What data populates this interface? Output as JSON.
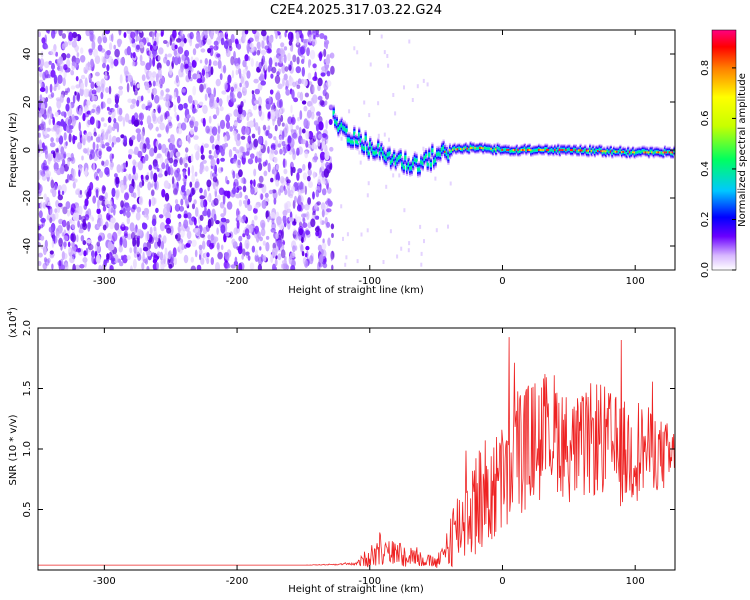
{
  "figure": {
    "title": "C2E4.2025.317.03.22.G24"
  },
  "chart_data": [
    {
      "type": "heatmap",
      "name": "spectrogram",
      "xlabel": "Height of straight line (km)",
      "ylabel": "Frequency (Hz)",
      "xlim": [
        -350,
        130
      ],
      "ylim": [
        -50,
        50
      ],
      "xticks": [
        -300,
        -200,
        -100,
        0,
        100
      ],
      "yticks": [
        -40,
        -20,
        0,
        20,
        40
      ],
      "description_of_data": "noise region for heights below about -130 km; signal trace near 0 Hz for heights above -130 km",
      "noise_region_x": [
        -350,
        -128
      ],
      "trace": [
        {
          "x": -128,
          "freq": 13
        },
        {
          "x": -120,
          "freq": 8
        },
        {
          "x": -110,
          "freq": 4
        },
        {
          "x": -100,
          "freq": 1
        },
        {
          "x": -90,
          "freq": -2
        },
        {
          "x": -80,
          "freq": -4
        },
        {
          "x": -70,
          "freq": -6
        },
        {
          "x": -60,
          "freq": -5
        },
        {
          "x": -50,
          "freq": -2
        },
        {
          "x": -40,
          "freq": 0
        },
        {
          "x": -20,
          "freq": 1
        },
        {
          "x": 0,
          "freq": 0
        },
        {
          "x": 50,
          "freq": 0
        },
        {
          "x": 100,
          "freq": -1
        },
        {
          "x": 130,
          "freq": -1
        }
      ],
      "colorbar": {
        "label": "Normalized spectral amplitude",
        "range": [
          0.0,
          0.95
        ],
        "ticks": [
          "0.0",
          "0.2",
          "0.4",
          "0.6",
          "0.8"
        ],
        "tick_values": [
          0.0,
          0.2,
          0.4,
          0.6,
          0.8
        ],
        "colors": [
          "#ffffff",
          "#6a00ff",
          "#0000ff",
          "#00c8ff",
          "#00ff60",
          "#c8ff00",
          "#ffff00",
          "#ff8000",
          "#ff0000",
          "#ff0080"
        ]
      }
    },
    {
      "type": "line",
      "name": "snr",
      "xlabel": "Height of straight line (km)",
      "ylabel": "SNR (10 * v/v)",
      "y_multiplier": "(x10",
      "y_multiplier_exp": "4",
      "y_multiplier_close": ")",
      "xlim": [
        -350,
        130
      ],
      "ylim": [
        0,
        2.0
      ],
      "xticks": [
        -300,
        -200,
        -100,
        0,
        100
      ],
      "yticks": [
        0.5,
        1.0,
        1.5,
        2.0
      ],
      "ytick_labels": [
        "0.5",
        "1.0",
        "1.5",
        "2.0"
      ],
      "line_color": "#ee2222",
      "x": [
        -350,
        -300,
        -250,
        -200,
        -150,
        -110,
        -100,
        -90,
        -80,
        -70,
        -60,
        -50,
        -45,
        -40,
        -35,
        -30,
        -20,
        -10,
        0,
        10,
        20,
        30,
        40,
        50,
        60,
        70,
        80,
        90,
        100,
        110,
        120,
        130
      ],
      "y": [
        0.04,
        0.04,
        0.04,
        0.04,
        0.04,
        0.05,
        0.12,
        0.15,
        0.14,
        0.12,
        0.08,
        0.06,
        0.1,
        0.25,
        0.35,
        0.4,
        0.55,
        0.65,
        0.7,
        0.95,
        1.05,
        1.1,
        1.15,
        1.0,
        1.0,
        1.1,
        1.05,
        0.95,
        1.0,
        1.0,
        0.95,
        0.9
      ],
      "y_spread": [
        0.0,
        0.0,
        0.0,
        0.0,
        0.0,
        0.01,
        0.1,
        0.12,
        0.1,
        0.1,
        0.06,
        0.05,
        0.1,
        0.25,
        0.3,
        0.35,
        0.45,
        0.5,
        0.45,
        0.6,
        0.5,
        0.55,
        0.5,
        0.45,
        0.45,
        0.5,
        0.45,
        0.45,
        0.45,
        0.35,
        0.3,
        0.3
      ]
    }
  ]
}
